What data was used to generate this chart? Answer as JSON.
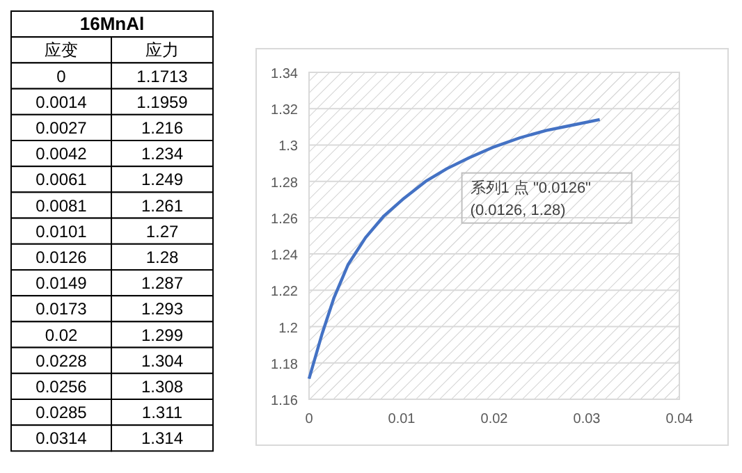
{
  "chart_data": [
    {
      "type": "other",
      "title": "16MnAl",
      "annotations": [
        "应变",
        "应力",
        "0",
        "1.1713",
        "0.0014",
        "1.1959",
        "0.0027",
        "1.216",
        "0.0042",
        "1.234",
        "0.0061",
        "1.249",
        "0.0081",
        "1.261",
        "0.0101",
        "1.27",
        "0.0126",
        "1.28",
        "0.0149",
        "1.287",
        "0.0173",
        "1.293",
        "0.02",
        "1.299",
        "0.0228",
        "1.304",
        "0.0256",
        "1.308",
        "0.0285",
        "1.311",
        "0.0314",
        "1.314"
      ]
    },
    {
      "type": "line",
      "x": [
        0,
        0.0014,
        0.0027,
        0.0042,
        0.0061,
        0.0081,
        0.0101,
        0.0126,
        0.0149,
        0.0173,
        0.02,
        0.0228,
        0.0256,
        0.0285,
        0.0314
      ],
      "series": [
        {
          "color": "#4472c4",
          "values": [
            1.1713,
            1.1959,
            1.216,
            1.234,
            1.249,
            1.261,
            1.27,
            1.28,
            1.287,
            1.293,
            1.299,
            1.304,
            1.308,
            1.311,
            1.314
          ]
        }
      ],
      "xlim": [
        0,
        0.04
      ],
      "xticks": [
        0,
        0.01,
        0.02,
        0.03,
        0.04
      ],
      "ylim": [
        1.16,
        1.34
      ],
      "yticks": [
        1.16,
        1.18,
        1.2,
        1.22,
        1.24,
        1.26,
        1.28,
        1.3,
        1.32,
        1.34
      ],
      "grid": "y",
      "marker": "none",
      "line_style": "solid",
      "annotations": [
        {
          "text": "系列1 点 \"0.0126\"\n(0.0126, 1.28)",
          "x": 0.0126,
          "y": 1.28
        }
      ]
    }
  ]
}
